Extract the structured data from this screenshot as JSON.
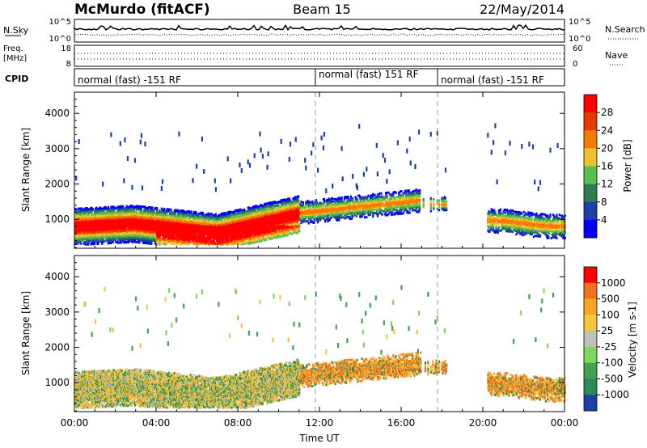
{
  "header": {
    "station": "McMurdo (fitACF)",
    "beam": "Beam 15",
    "date": "22/May/2014"
  },
  "status_panels": {
    "nsky_label": "N.Sky",
    "nsky_ticks": [
      "10^5",
      "10^0"
    ],
    "nsearch_label": "N.Search",
    "freq_label": "Freq.",
    "freq_unit": "[MHz]",
    "freq_ticks": [
      "18",
      "8"
    ],
    "nave_label": "Nave",
    "nave_ticks": [
      "60",
      "0"
    ],
    "cpid_label": "CPID",
    "cpid_segments": [
      {
        "label": "normal (fast) -151 RF",
        "start_hour": 0
      },
      {
        "label": "normal (fast) 151 RF",
        "start_hour": 12
      },
      {
        "label": "normal (fast) -151 RF",
        "start_hour": 18
      }
    ]
  },
  "chart_data": [
    {
      "type": "heatmap",
      "parameter": "Power",
      "xlabel": "Time UT",
      "ylabel": "Slant Range [km]",
      "x_ticks": [
        "00:00",
        "04:00",
        "08:00",
        "12:00",
        "16:00",
        "20:00",
        "00:00"
      ],
      "xlim_hours": [
        0,
        24
      ],
      "ylim_km": [
        180,
        4600
      ],
      "y_ticks": [
        1000,
        2000,
        3000,
        4000
      ],
      "colorbar_label": "Power [dB]",
      "colorbar_ticks": [
        "28",
        "24",
        "20",
        "16",
        "12",
        "8",
        "4"
      ],
      "colors": [
        "#0000ff",
        "#1c3fa8",
        "#2f7d4c",
        "#56c151",
        "#f0c030",
        "#f57c00",
        "#e63a00",
        "#ff0000"
      ],
      "dashed_time_marks_hours": [
        12,
        18
      ]
    },
    {
      "type": "heatmap",
      "parameter": "Velocity",
      "xlabel": "Time UT",
      "ylabel": "Slant Range [km]",
      "x_ticks": [
        "00:00",
        "04:00",
        "08:00",
        "12:00",
        "16:00",
        "20:00",
        "00:00"
      ],
      "xlim_hours": [
        0,
        24
      ],
      "ylim_km": [
        180,
        4600
      ],
      "y_ticks": [
        1000,
        2000,
        3000,
        4000
      ],
      "colorbar_label": "Velocity [m s-1]",
      "colorbar_ticks": [
        "1000",
        "500",
        "100",
        "25",
        "-25",
        "-100",
        "-500",
        "-1000"
      ],
      "colors": [
        "#1c3fa8",
        "#2c8a55",
        "#3fa352",
        "#7ed75a",
        "#bfbfbf",
        "#f5c542",
        "#f5a623",
        "#f07020",
        "#ff0000"
      ],
      "dashed_time_marks_hours": [
        12,
        18
      ]
    }
  ]
}
